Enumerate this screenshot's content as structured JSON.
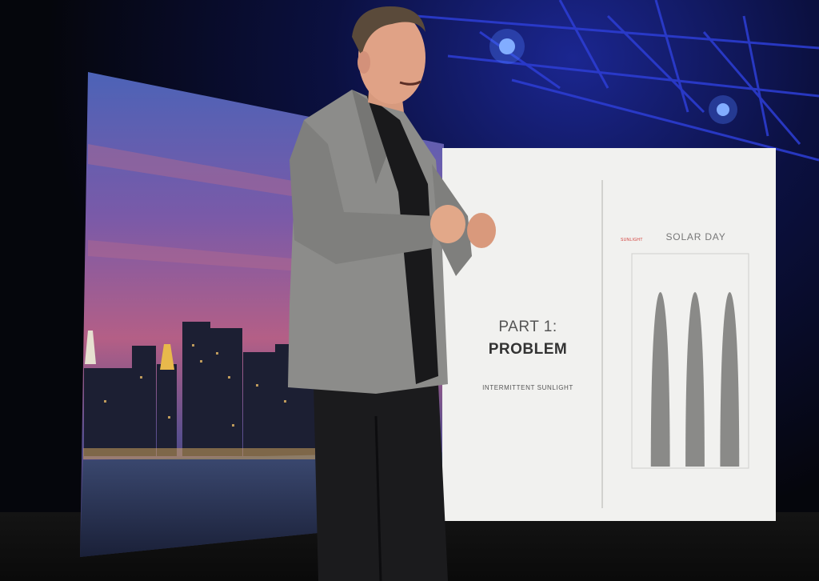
{
  "slide": {
    "heading": "PART 1:",
    "title": "PROBLEM",
    "subtitle": "INTERMITTENT SUNLIGHT",
    "chart_title": "SOLAR DAY",
    "legend_label": "SUNLIGHT",
    "accent_color": "#d23a36"
  },
  "colors": {
    "stage_light": "#1b2690",
    "slide_background": "#f1f1ef",
    "chart_fill": "#8a8a88",
    "suit": "#8c8c8a"
  },
  "chart_data": {
    "type": "area",
    "title": "SOLAR DAY",
    "series": [
      {
        "name": "SUNLIGHT",
        "values": [
          0,
          1,
          0,
          1,
          0,
          1,
          0
        ]
      }
    ],
    "x": [
      0,
      1,
      2,
      3,
      4,
      5,
      6
    ],
    "peaks": 3,
    "grid": false
  }
}
